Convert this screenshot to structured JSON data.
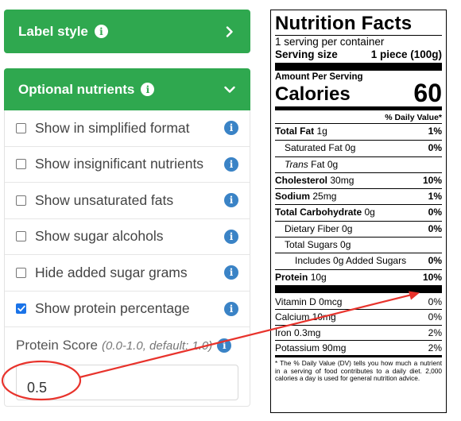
{
  "label_style": {
    "title": "Label style"
  },
  "optional_nutrients": {
    "title": "Optional nutrients",
    "options": [
      {
        "label": "Show in simplified format",
        "checked": false
      },
      {
        "label": "Show insignificant nutrients",
        "checked": false
      },
      {
        "label": "Show unsaturated fats",
        "checked": false
      },
      {
        "label": "Show sugar alcohols",
        "checked": false
      },
      {
        "label": "Hide added sugar grams",
        "checked": false
      },
      {
        "label": "Show protein percentage",
        "checked": true
      }
    ],
    "protein_score": {
      "label": "Protein Score",
      "hint": "(0.0-1.0, default: 1.0)",
      "value": "0.5"
    }
  },
  "nutrition_facts": {
    "title": "Nutrition Facts",
    "servings": "1 serving per container",
    "serving_size_label": "Serving size",
    "serving_size_value": "1 piece (100g)",
    "amount_per_serving": "Amount Per Serving",
    "calories_label": "Calories",
    "calories_value": "60",
    "daily_value_header": "% Daily Value*",
    "rows": {
      "total_fat": {
        "name": "Total Fat",
        "amount": "1g",
        "dv": "1%"
      },
      "saturated_fat": {
        "name": "Saturated Fat 0g",
        "dv": "0%"
      },
      "trans_fat": {
        "name": "Trans",
        "amount": "Fat 0g"
      },
      "cholesterol": {
        "name": "Cholesterol",
        "amount": "30mg",
        "dv": "10%"
      },
      "sodium": {
        "name": "Sodium",
        "amount": "25mg",
        "dv": "1%"
      },
      "total_carb": {
        "name": "Total Carbohydrate",
        "amount": "0g",
        "dv": "0%"
      },
      "dietary_fiber": {
        "name": "Dietary Fiber 0g",
        "dv": "0%"
      },
      "total_sugars": {
        "name": "Total Sugars 0g"
      },
      "added_sugars": {
        "name": "Includes 0g Added Sugars",
        "dv": "0%"
      },
      "protein": {
        "name": "Protein",
        "amount": "10g",
        "dv": "10%"
      }
    },
    "vitamins": [
      {
        "name": "Vitamin D 0mcg",
        "dv": "0%"
      },
      {
        "name": "Calcium 10mg",
        "dv": "0%"
      },
      {
        "name": "Iron 0.3mg",
        "dv": "2%"
      },
      {
        "name": "Potassium 90mg",
        "dv": "2%"
      }
    ],
    "footnote": "* The % Daily Value (DV) tells you how much a nutrient in a serving of food contributes to a daily diet. 2,000 calories a day is used for general nutrition advice."
  },
  "colors": {
    "header_green": "#2fa84f",
    "info_blue": "#3a83c6",
    "annotation_red": "#e8332c",
    "checkbox_blue": "#1a73e8"
  }
}
